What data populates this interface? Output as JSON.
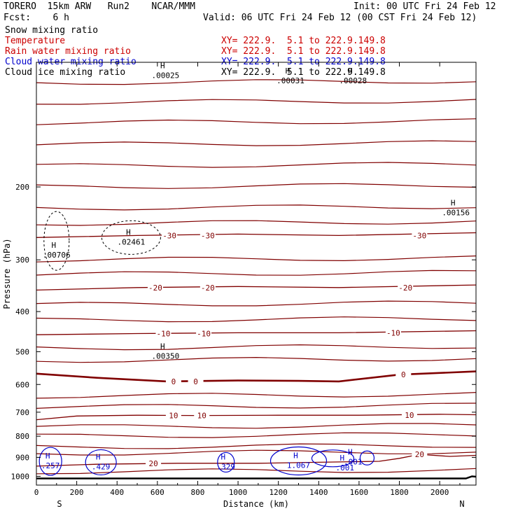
{
  "header": {
    "model": "TORERO  15km ARW   Run2    NCAR/MMM",
    "fcst": "Fcst:    6 h",
    "init": "Init: 00 UTC Fri 24 Feb 12",
    "valid": "Valid: 06 UTC Fri 24 Feb 12 (00 CST Fri 24 Feb 12)"
  },
  "legend": [
    {
      "label": "Snow mixing ratio",
      "xy": "",
      "color": "#000000"
    },
    {
      "label": "Temperature",
      "xy": "XY= 222.9.  5.1 to 222.9.149.8",
      "color": "#cc0000"
    },
    {
      "label": "Rain water mixing ratio",
      "xy": "XY= 222.9.  5.1 to 222.9.149.8",
      "color": "#cc0000"
    },
    {
      "label": "Cloud water mixing ratio",
      "xy": "XY= 222.9.  5.1 to 222.9.149.8",
      "color": "#0000cc"
    },
    {
      "label": "Cloud ice mixing ratio",
      "xy": "XY= 222.9.  5.1 to 222.9.149.8",
      "color": "#000000"
    }
  ],
  "colors": {
    "temperature": "#800000",
    "cloud_water": "#0000cc",
    "snow": "#000000",
    "terrain": "#000000"
  },
  "chart_data": {
    "type": "line",
    "xlabel": "Distance (km)",
    "ylabel": "Pressure (hPa)",
    "xlim": [
      0,
      2180
    ],
    "ylim": [
      1050,
      100
    ],
    "y_scale": "log",
    "x_ticks": [
      0,
      200,
      400,
      600,
      800,
      1000,
      1200,
      1400,
      1600,
      1800,
      2000
    ],
    "x_tick_labels": [
      "0",
      "200",
      "400",
      "600",
      "800",
      "1000",
      "1200",
      "1400",
      "1600",
      "1800",
      "2000"
    ],
    "y_ticks": [
      200,
      300,
      400,
      500,
      600,
      700,
      800,
      900,
      1000
    ],
    "y_tick_labels": [
      "200",
      "300",
      "400",
      "500",
      "600",
      "700",
      "800",
      "900",
      "1000"
    ],
    "endpoints": {
      "left": "S",
      "right": "N"
    },
    "temperature_isotherms": [
      {
        "label": "-30",
        "points": [
          [
            0,
            265
          ],
          [
            500,
            262
          ],
          [
            1000,
            260
          ],
          [
            1500,
            262
          ],
          [
            2180,
            258
          ]
        ],
        "label_at": [
          [
            660,
            262
          ],
          [
            850,
            262
          ],
          [
            1900,
            262
          ]
        ]
      },
      {
        "label": "-20",
        "points": [
          [
            0,
            355
          ],
          [
            500,
            350
          ],
          [
            1000,
            348
          ],
          [
            1500,
            350
          ],
          [
            2180,
            345
          ]
        ],
        "label_at": [
          [
            590,
            350
          ],
          [
            850,
            350
          ],
          [
            1830,
            350
          ]
        ]
      },
      {
        "label": "-10",
        "points": [
          [
            0,
            455
          ],
          [
            500,
            452
          ],
          [
            1000,
            450
          ],
          [
            1500,
            450
          ],
          [
            2180,
            445
          ]
        ],
        "label_at": [
          [
            630,
            452
          ],
          [
            830,
            452
          ],
          [
            1770,
            450
          ]
        ]
      },
      {
        "label": "0",
        "points": [
          [
            0,
            565
          ],
          [
            300,
            578
          ],
          [
            650,
            590
          ],
          [
            1000,
            587
          ],
          [
            1300,
            588
          ],
          [
            1500,
            590
          ],
          [
            1800,
            568
          ],
          [
            2180,
            558
          ]
        ],
        "label_at": [
          [
            680,
            590
          ],
          [
            790,
            590
          ],
          [
            1820,
            568
          ]
        ],
        "bold": true
      },
      {
        "label": "10",
        "points": [
          [
            0,
            730
          ],
          [
            200,
            715
          ],
          [
            500,
            712
          ],
          [
            800,
            713
          ],
          [
            1200,
            712
          ],
          [
            1600,
            712
          ],
          [
            2000,
            708
          ],
          [
            2180,
            710
          ]
        ],
        "label_at": [
          [
            680,
            713
          ],
          [
            820,
            713
          ],
          [
            1850,
            711
          ]
        ]
      },
      {
        "label": "20",
        "points": [
          [
            0,
            945
          ],
          [
            300,
            935
          ],
          [
            700,
            930
          ],
          [
            1100,
            930
          ],
          [
            1400,
            925
          ],
          [
            1700,
            920
          ],
          [
            1800,
            905
          ],
          [
            1900,
            885
          ],
          [
            2050,
            895
          ],
          [
            2180,
            890
          ]
        ],
        "label_at": [
          [
            580,
            930
          ],
          [
            1900,
            885
          ]
        ]
      }
    ],
    "cloud_water_maxima": [
      {
        "label": ".257",
        "x": 70,
        "p": 920
      },
      {
        "label": ".429",
        "x": 320,
        "p": 925
      },
      {
        "label": ".329",
        "x": 940,
        "p": 925
      },
      {
        "label": "1.067",
        "x": 1300,
        "p": 918
      },
      {
        "label": ".001",
        "x": 1570,
        "p": 900
      },
      {
        "label": ".001",
        "x": 1530,
        "p": 930
      }
    ],
    "snow_maxima": [
      {
        "label": ".00706",
        "x": 100,
        "p": 285
      },
      {
        "label": ".02461",
        "x": 470,
        "p": 265
      },
      {
        "label": ".00350",
        "x": 640,
        "p": 500
      },
      {
        "label": ".00156",
        "x": 2080,
        "p": 225
      },
      {
        "label": ".00025",
        "x": 640,
        "p": 105
      },
      {
        "label": ".00031",
        "x": 1260,
        "p": 108
      },
      {
        "label": ".00028",
        "x": 1570,
        "p": 108
      }
    ],
    "terrain_surface_p": 1012
  }
}
